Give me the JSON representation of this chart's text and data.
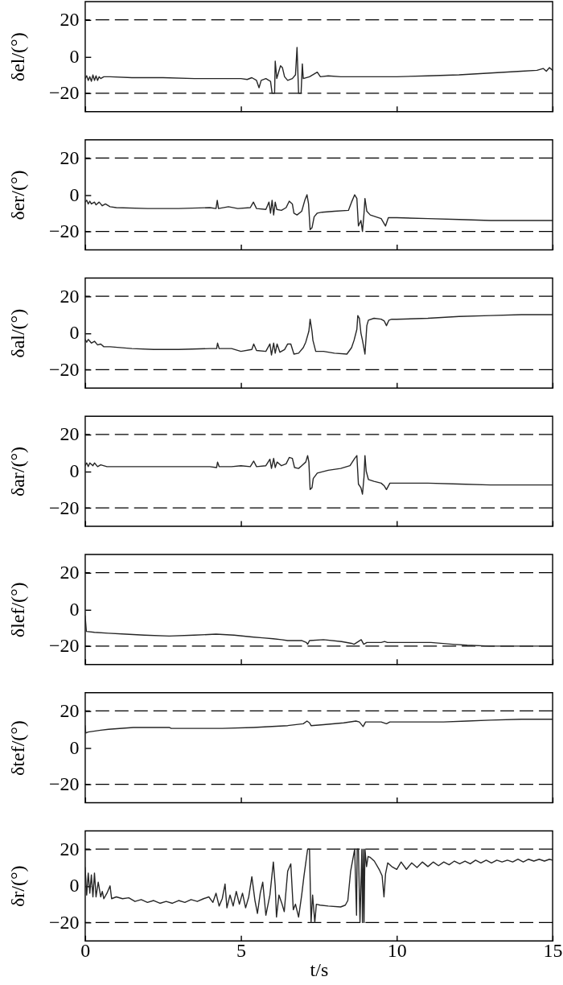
{
  "chart_data": [
    {
      "type": "line",
      "ylabel": "δel/(°)",
      "color": "#262626",
      "xlim": [
        0,
        15
      ],
      "ylim": [
        -30,
        30
      ],
      "xticks": [
        0,
        5,
        10,
        15
      ],
      "yticks": [
        -20,
        0,
        20
      ],
      "tick_labels": "y",
      "ref_lines": [
        {
          "axis": "y",
          "value": 20,
          "color": "#000000",
          "line_style": "dashed"
        },
        {
          "axis": "y",
          "value": -20,
          "color": "#000000",
          "line_style": "dashed"
        }
      ],
      "x": [
        0,
        0.05,
        0.1,
        0.15,
        0.2,
        0.25,
        0.3,
        0.35,
        0.4,
        0.45,
        0.5,
        0.6,
        0.8,
        1.5,
        2.5,
        3.5,
        4.5,
        5,
        5.2,
        5.35,
        5.5,
        5.58,
        5.65,
        5.8,
        5.95,
        6,
        6.08,
        6.1,
        6.15,
        6.2,
        6.27,
        6.33,
        6.4,
        6.5,
        6.65,
        6.75,
        6.8,
        6.85,
        6.93,
        6.97,
        7,
        7.2,
        7.45,
        7.55,
        7.8,
        8.2,
        9,
        10,
        11,
        12,
        13,
        14,
        14.5,
        14.7,
        14.8,
        14.9,
        15
      ],
      "values": [
        -12,
        -10.5,
        -13,
        -11,
        -13.5,
        -10,
        -13,
        -10.5,
        -13,
        -11,
        -12,
        -11,
        -11,
        -11.5,
        -11.5,
        -12,
        -12,
        -12,
        -12.5,
        -11.5,
        -13,
        -17,
        -13,
        -12,
        -13.5,
        -20,
        -20,
        -2.5,
        -12,
        -9,
        -5,
        -6,
        -11,
        -13,
        -12,
        -10,
        5,
        -20,
        -20,
        -4,
        -12,
        -11,
        -8.5,
        -11,
        -10.5,
        -11,
        -11,
        -11,
        -10.5,
        -10,
        -9,
        -8,
        -7.5,
        -6.5,
        -8,
        -6,
        -7.5
      ]
    },
    {
      "type": "line",
      "ylabel": "δer/(°)",
      "color": "#262626",
      "xlim": [
        0,
        15
      ],
      "ylim": [
        -30,
        30
      ],
      "xticks": [
        0,
        5,
        10,
        15
      ],
      "yticks": [
        -20,
        0,
        20
      ],
      "tick_labels": "y",
      "ref_lines": [
        {
          "axis": "y",
          "value": 20,
          "color": "#000000",
          "line_style": "dashed"
        },
        {
          "axis": "y",
          "value": -20,
          "color": "#000000",
          "line_style": "dashed"
        }
      ],
      "x": [
        0,
        0.05,
        0.1,
        0.15,
        0.2,
        0.3,
        0.35,
        0.45,
        0.55,
        0.65,
        0.8,
        1,
        2,
        3,
        4,
        4.2,
        4.24,
        4.28,
        4.6,
        4.9,
        5.3,
        5.4,
        5.5,
        5.8,
        5.9,
        5.95,
        6,
        6.05,
        6.1,
        6.15,
        6.3,
        6.45,
        6.55,
        6.65,
        6.7,
        6.8,
        6.95,
        7.05,
        7.12,
        7.17,
        7.22,
        7.28,
        7.35,
        7.45,
        7.6,
        8,
        8.45,
        8.55,
        8.65,
        8.72,
        8.77,
        8.85,
        8.9,
        8.95,
        8.98,
        9.04,
        9.15,
        9.5,
        9.64,
        9.73,
        10,
        11,
        12,
        13,
        14,
        15
      ],
      "values": [
        -4,
        -3,
        -5,
        -3.5,
        -5,
        -4,
        -5.5,
        -4,
        -6,
        -5,
        -6.5,
        -7,
        -7.5,
        -7.5,
        -7,
        -7.5,
        -3,
        -7.5,
        -6.5,
        -7.5,
        -7,
        -4,
        -7.5,
        -8,
        -4,
        -10,
        -3,
        -11,
        -4,
        -8,
        -8.5,
        -7,
        -3.5,
        -5,
        -10,
        -11,
        -9,
        -3,
        0,
        -5,
        -19,
        -18,
        -12,
        -10,
        -9.5,
        -9,
        -8.5,
        -4,
        0,
        -2,
        -17,
        -14,
        -20,
        -10,
        -2,
        -9,
        -11,
        -13,
        -17,
        -12.5,
        -12.5,
        -13,
        -13.5,
        -14,
        -14,
        -14
      ]
    },
    {
      "type": "line",
      "ylabel": "δal/(°)",
      "color": "#262626",
      "xlim": [
        0,
        15
      ],
      "ylim": [
        -30,
        30
      ],
      "xticks": [
        0,
        5,
        10,
        15
      ],
      "yticks": [
        -20,
        0,
        20
      ],
      "tick_labels": "y",
      "ref_lines": [
        {
          "axis": "y",
          "value": 20,
          "color": "#000000",
          "line_style": "dashed"
        },
        {
          "axis": "y",
          "value": -20,
          "color": "#000000",
          "line_style": "dashed"
        }
      ],
      "x": [
        0,
        0.05,
        0.1,
        0.2,
        0.3,
        0.4,
        0.5,
        0.6,
        0.8,
        1.5,
        2.2,
        3,
        4,
        4.22,
        4.25,
        4.3,
        4.7,
        5,
        5.35,
        5.41,
        5.5,
        5.8,
        5.93,
        5.98,
        6.05,
        6.1,
        6.16,
        6.25,
        6.4,
        6.5,
        6.6,
        6.7,
        6.85,
        7,
        7.08,
        7.18,
        7.22,
        7.28,
        7.31,
        7.4,
        7.65,
        8,
        8.4,
        8.55,
        8.63,
        8.72,
        8.75,
        8.8,
        8.85,
        8.9,
        8.98,
        9.04,
        9.09,
        9.27,
        9.5,
        9.6,
        9.67,
        9.75,
        9.84,
        10,
        11,
        12,
        13,
        14,
        15
      ],
      "values": [
        -3.5,
        -5,
        -3.5,
        -5.5,
        -4.5,
        -6.5,
        -6,
        -7.5,
        -7.5,
        -8.5,
        -9,
        -9,
        -8.5,
        -8.5,
        -5.5,
        -8.5,
        -8.5,
        -10,
        -9,
        -6,
        -9.5,
        -10,
        -6,
        -12,
        -5.5,
        -11,
        -6,
        -10.5,
        -9,
        -6,
        -6,
        -11.5,
        -11,
        -8,
        -5,
        1,
        7.5,
        1,
        -4,
        -10,
        -10,
        -11,
        -11.5,
        -8,
        -4,
        2,
        9.5,
        8,
        0,
        -4,
        -11.5,
        4,
        7,
        8,
        7.5,
        6.5,
        4,
        7,
        7.5,
        7.5,
        8,
        9,
        9.5,
        10,
        10
      ]
    },
    {
      "type": "line",
      "ylabel": "δar/(°)",
      "color": "#262626",
      "xlim": [
        0,
        15
      ],
      "ylim": [
        -30,
        30
      ],
      "xticks": [
        0,
        5,
        10,
        15
      ],
      "yticks": [
        -20,
        0,
        20
      ],
      "tick_labels": "y",
      "ref_lines": [
        {
          "axis": "y",
          "value": 20,
          "color": "#000000",
          "line_style": "dashed"
        },
        {
          "axis": "y",
          "value": -20,
          "color": "#000000",
          "line_style": "dashed"
        }
      ],
      "x": [
        0,
        0.05,
        0.1,
        0.15,
        0.25,
        0.3,
        0.4,
        0.5,
        0.7,
        1,
        2,
        3,
        4,
        4.22,
        4.25,
        4.3,
        4.7,
        5,
        5.3,
        5.41,
        5.5,
        5.8,
        5.93,
        5.98,
        6.05,
        6.1,
        6.16,
        6.3,
        6.45,
        6.55,
        6.65,
        6.72,
        6.85,
        6.95,
        7.08,
        7.14,
        7.18,
        7.22,
        7.28,
        7.32,
        7.45,
        7.8,
        8.2,
        8.5,
        8.65,
        8.72,
        8.77,
        8.85,
        8.9,
        8.95,
        8.98,
        9.02,
        9.09,
        9.27,
        9.5,
        9.6,
        9.67,
        9.78,
        10,
        11,
        12,
        13,
        14,
        15
      ],
      "values": [
        3,
        4.5,
        2.5,
        4.5,
        3,
        4.5,
        2.5,
        3.5,
        2.5,
        2.5,
        2.5,
        2.5,
        2.5,
        2,
        5,
        2.5,
        2.5,
        3,
        2.5,
        5.5,
        2.5,
        3,
        6.5,
        1.5,
        7,
        2,
        5,
        3,
        4,
        7.5,
        7,
        2,
        1.5,
        3,
        5,
        8.5,
        5,
        -10,
        -9,
        -4,
        -1,
        0.5,
        1.5,
        3,
        7,
        8.5,
        -7,
        -9,
        -12.5,
        -3,
        8.5,
        0,
        -4.5,
        -5.5,
        -6.5,
        -8,
        -10,
        -6.5,
        -6.5,
        -6.5,
        -7,
        -7.5,
        -7.5,
        -7.5
      ]
    },
    {
      "type": "line",
      "ylabel": "δlef/(°)",
      "color": "#262626",
      "xlim": [
        0,
        15
      ],
      "ylim": [
        -30,
        30
      ],
      "xticks": [
        0,
        5,
        10,
        15
      ],
      "yticks": [
        -20,
        0,
        20
      ],
      "tick_labels": "y",
      "ref_lines": [
        {
          "axis": "y",
          "value": 20,
          "color": "#000000",
          "line_style": "dashed"
        },
        {
          "axis": "y",
          "value": -20,
          "color": "#000000",
          "line_style": "dashed"
        }
      ],
      "x": [
        0,
        0.04,
        0.3,
        0.75,
        1.3,
        1.9,
        2.7,
        3.5,
        4.2,
        4.78,
        5.35,
        5.7,
        6.04,
        6.3,
        6.5,
        6.96,
        7.1,
        7.14,
        7.2,
        7.65,
        8.23,
        8.55,
        8.63,
        8.72,
        8.86,
        8.94,
        9.04,
        9.5,
        9.61,
        9.7,
        10.5,
        11.1,
        11.8,
        12.26,
        13,
        14,
        15
      ],
      "values": [
        -3.5,
        -12,
        -12.5,
        -13,
        -13.5,
        -14,
        -14.5,
        -14,
        -13.5,
        -14,
        -15,
        -15.5,
        -16,
        -16.5,
        -17,
        -17,
        -18,
        -19,
        -17,
        -16.5,
        -17.5,
        -18.5,
        -19,
        -18,
        -16.5,
        -19,
        -18,
        -18,
        -17.5,
        -18,
        -18,
        -18,
        -19,
        -19.5,
        -20,
        -20,
        -20
      ]
    },
    {
      "type": "line",
      "ylabel": "δtef/(°)",
      "color": "#262626",
      "xlim": [
        0,
        15
      ],
      "ylim": [
        -30,
        30
      ],
      "xticks": [
        0,
        5,
        10,
        15
      ],
      "yticks": [
        -20,
        0,
        20
      ],
      "tick_labels": "y",
      "ref_lines": [
        {
          "axis": "y",
          "value": 20,
          "color": "#000000",
          "line_style": "dashed"
        },
        {
          "axis": "y",
          "value": -20,
          "color": "#000000",
          "line_style": "dashed"
        }
      ],
      "x": [
        0,
        0.02,
        0.1,
        0.5,
        0.75,
        1.55,
        2.7,
        2.76,
        3.5,
        4.4,
        5.4,
        6,
        6.5,
        7,
        7.12,
        7.2,
        7.25,
        7.65,
        8.3,
        8.69,
        8.8,
        8.92,
        9,
        9.5,
        9.67,
        9.78,
        10.5,
        11.5,
        12.26,
        13,
        14,
        15
      ],
      "values": [
        12,
        8,
        8.5,
        9.5,
        10,
        11,
        11,
        10.5,
        10.5,
        10.5,
        11,
        11.5,
        12,
        13,
        14.5,
        13.5,
        12,
        12.5,
        13.5,
        14.5,
        14,
        11.5,
        14,
        14,
        13,
        14,
        14,
        14,
        14.5,
        15,
        15.5,
        15.5
      ]
    },
    {
      "type": "line",
      "ylabel": "δr/(°)",
      "xlabel": "t/s",
      "color": "#262626",
      "xlim": [
        0,
        15
      ],
      "ylim": [
        -30,
        30
      ],
      "xticks": [
        0,
        5,
        10,
        15
      ],
      "yticks": [
        -20,
        0,
        20
      ],
      "ref_lines": [
        {
          "axis": "y",
          "value": 20,
          "color": "#000000",
          "line_style": "dashed"
        },
        {
          "axis": "y",
          "value": -20,
          "color": "#000000",
          "line_style": "dashed"
        }
      ],
      "x": [
        0,
        0.05,
        0.1,
        0.15,
        0.2,
        0.25,
        0.3,
        0.35,
        0.42,
        0.5,
        0.55,
        0.6,
        0.7,
        0.8,
        0.85,
        1,
        1.2,
        1.4,
        1.6,
        1.8,
        2,
        2.2,
        2.4,
        2.6,
        2.8,
        3,
        3.2,
        3.4,
        3.6,
        3.8,
        3.97,
        4.1,
        4.2,
        4.3,
        4.4,
        4.49,
        4.55,
        4.65,
        4.75,
        4.85,
        4.95,
        5.05,
        5.15,
        5.25,
        5.35,
        5.45,
        5.53,
        5.62,
        5.7,
        5.8,
        5.93,
        6.04,
        6.1,
        6.14,
        6.22,
        6.32,
        6.39,
        6.5,
        6.6,
        6.68,
        6.75,
        6.85,
        6.95,
        7.02,
        7.1,
        7.14,
        7.2,
        7.25,
        7.3,
        7.37,
        7.42,
        7.54,
        7.8,
        8.2,
        8.35,
        8.43,
        8.52,
        8.65,
        8.71,
        8.73,
        8.77,
        8.82,
        8.88,
        8.9,
        8.93,
        8.95,
        8.98,
        9.03,
        9.08,
        9.15,
        9.28,
        9.45,
        9.53,
        9.59,
        9.64,
        9.71,
        9.84,
        10,
        10.14,
        10.31,
        10.48,
        10.65,
        10.82,
        11,
        11.17,
        11.34,
        11.51,
        11.68,
        11.85,
        12.02,
        12.19,
        12.36,
        12.53,
        12.7,
        12.87,
        13.04,
        13.21,
        13.38,
        13.55,
        13.72,
        13.89,
        14.06,
        14.23,
        14.4,
        14.57,
        14.74,
        14.9,
        15
      ],
      "values": [
        10,
        -5,
        7,
        -4,
        6,
        -6,
        7,
        -6,
        2,
        -6,
        -3,
        -7,
        -4,
        0,
        -7,
        -6,
        -7,
        -6.5,
        -8.5,
        -7.5,
        -9,
        -8,
        -9.5,
        -8.5,
        -9.5,
        -8,
        -9,
        -7.5,
        -8.5,
        -7,
        -6,
        -9,
        -4,
        -11,
        -7,
        1,
        -12,
        -5,
        -11,
        -3,
        -10,
        -4,
        -12,
        -6,
        5,
        -8,
        -15,
        -4,
        2,
        -16,
        -5,
        13,
        0,
        -17,
        -5,
        -10,
        -14,
        8,
        12,
        -13,
        -10,
        -17,
        -5,
        5,
        15,
        20,
        20,
        -20,
        -5,
        -20,
        -10,
        -10.5,
        -11,
        -11.5,
        -10.5,
        -8,
        8,
        20,
        -16,
        20,
        20,
        -20,
        20,
        -20,
        20,
        -20,
        20,
        10.5,
        16,
        15.5,
        13.5,
        8.5,
        5.5,
        -6,
        6.5,
        12.5,
        10.5,
        9,
        13,
        9,
        12.5,
        10,
        13,
        10.5,
        13,
        11,
        13,
        11.5,
        13.5,
        12,
        13.5,
        12,
        14,
        12.5,
        14,
        12.5,
        14,
        13,
        14,
        13,
        14.5,
        13,
        14.5,
        13.5,
        14.5,
        13.5,
        14.5,
        14
      ]
    }
  ]
}
